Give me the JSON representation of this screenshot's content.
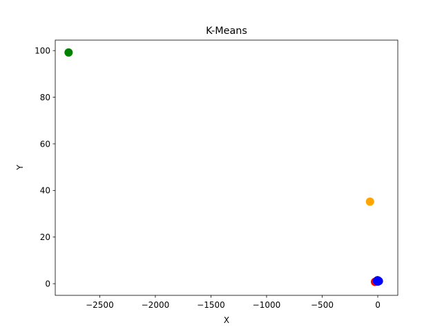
{
  "chart_data": {
    "type": "scatter",
    "title": "K-Means",
    "xlabel": "X",
    "ylabel": "Y",
    "xlim": [
      -2900,
      180
    ],
    "ylim": [
      -5,
      104.5
    ],
    "xticks": [
      -2500,
      -2000,
      -1500,
      -1000,
      -500,
      0
    ],
    "xtick_labels": [
      "−2500",
      "−2000",
      "−1500",
      "−1000",
      "−500",
      "0"
    ],
    "yticks": [
      0,
      20,
      40,
      60,
      80,
      100
    ],
    "ytick_labels": [
      "0",
      "20",
      "40",
      "60",
      "80",
      "100"
    ],
    "grid": false,
    "points": [
      {
        "x": -2780,
        "y": 99.2,
        "color": "#008000"
      },
      {
        "x": -70,
        "y": 35.2,
        "color": "#ffa500"
      },
      {
        "x": -25,
        "y": 0.8,
        "color": "#ff0000"
      },
      {
        "x": -15,
        "y": 1.0,
        "color": "#ff0000"
      },
      {
        "x": -8,
        "y": 1.2,
        "color": "#0000ff"
      },
      {
        "x": -2,
        "y": 1.5,
        "color": "#0000ff"
      },
      {
        "x": 5,
        "y": 1.3,
        "color": "#0000ff"
      },
      {
        "x": 10,
        "y": 1.1,
        "color": "#0000ff"
      },
      {
        "x": 0,
        "y": 0.9,
        "color": "#0000ff"
      }
    ]
  }
}
